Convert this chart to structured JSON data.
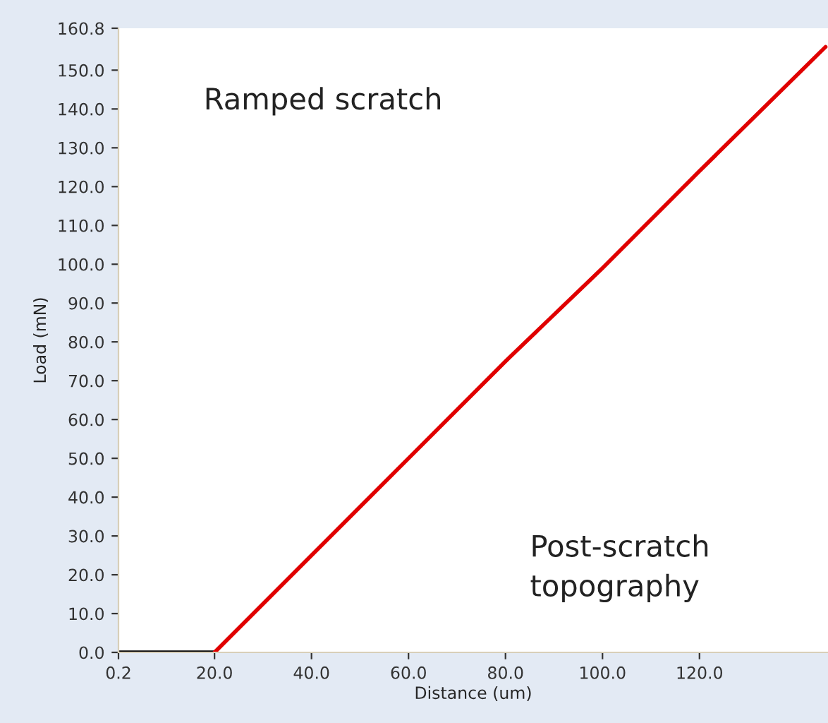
{
  "chart_data": {
    "type": "line",
    "xlabel": "Distance (um)",
    "ylabel": "Load (mN)",
    "series": [
      {
        "color": "#000000",
        "x": [
          0.2,
          20.0
        ],
        "values": [
          0,
          0
        ]
      },
      {
        "color": "#e00000",
        "x": [
          20.0,
          40.0,
          60.0,
          80.0,
          100.0,
          120.0,
          146.0
        ],
        "values": [
          0,
          25,
          50,
          75,
          99,
          124,
          156
        ]
      }
    ],
    "xlim": [
      0.2,
      146.5
    ],
    "xticks": [
      0.2,
      {
        "value": 20,
        "label": "20.0"
      },
      {
        "value": 40,
        "label": "40.0"
      },
      {
        "value": 60,
        "label": "60.0"
      },
      {
        "value": 80,
        "label": "80.0"
      },
      {
        "value": 100,
        "label": "100.0"
      },
      {
        "value": 120,
        "label": "120.0"
      }
    ],
    "ylim": [
      0,
      160.8
    ],
    "yticks": [
      {
        "value": 0,
        "label": "0.0"
      },
      {
        "value": 10,
        "label": "10.0"
      },
      {
        "value": 20,
        "label": "20.0"
      },
      {
        "value": 30,
        "label": "30.0"
      },
      {
        "value": 40,
        "label": "40.0"
      },
      {
        "value": 50,
        "label": "50.0"
      },
      {
        "value": 60,
        "label": "60.0"
      },
      {
        "value": 70,
        "label": "70.0"
      },
      {
        "value": 80,
        "label": "80.0"
      },
      {
        "value": 90,
        "label": "90.0"
      },
      {
        "value": 100,
        "label": "100.0"
      },
      {
        "value": 110,
        "label": "110.0"
      },
      {
        "value": 120,
        "label": "120.0"
      },
      {
        "value": 130,
        "label": "130.0"
      },
      {
        "value": 140,
        "label": "140.0"
      },
      {
        "value": 150,
        "label": "150.0"
      },
      {
        "value": 160.8,
        "label": "160.8"
      }
    ],
    "annotations": [
      "Ramped scratch",
      "Post-scratch\ntopography"
    ],
    "grid": false,
    "legend": false
  }
}
